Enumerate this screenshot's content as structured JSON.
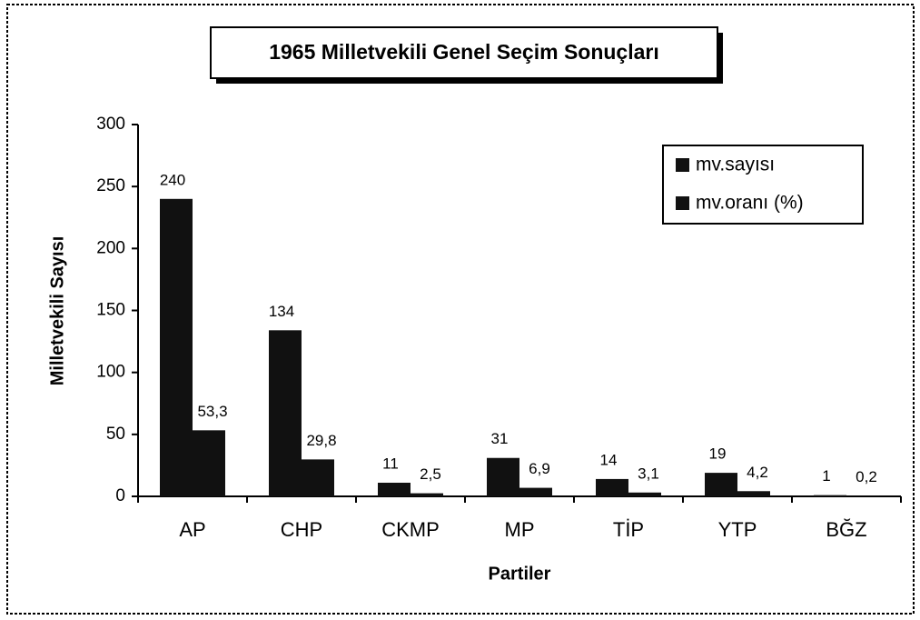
{
  "chart_data": {
    "type": "bar",
    "title": "1965 Milletvekili Genel Seçim Sonuçları",
    "x_label": "Partiler",
    "y_label": "Milletvekili Sayısı",
    "categories": [
      "AP",
      "CHP",
      "CKMP",
      "MP",
      "TİP",
      "YTP",
      "BĞZ"
    ],
    "series": [
      {
        "name": "mv.sayısı",
        "color": "#111111",
        "values": [
          240,
          134,
          11,
          31,
          14,
          19,
          1
        ]
      },
      {
        "name": "mv.oranı (%)",
        "color": "#111111",
        "values": [
          53.3,
          29.8,
          2.5,
          6.9,
          3.1,
          4.2,
          0.2
        ],
        "value_labels": [
          "53,3",
          "29,8",
          "2,5",
          "6,9",
          "3,1",
          "4,2",
          "0,2"
        ]
      }
    ],
    "ylim": [
      0,
      300
    ],
    "yticks": [
      0,
      50,
      100,
      150,
      200,
      250,
      300
    ],
    "legend": "top-right"
  }
}
